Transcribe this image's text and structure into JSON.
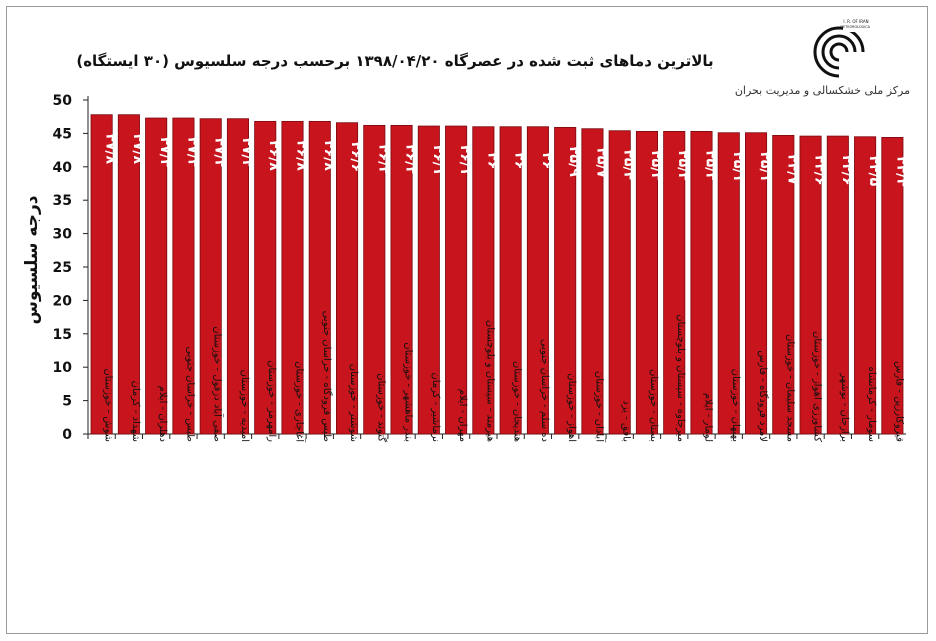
{
  "title": "بالاترین دماهای ثبت شده در عصرگاه ۱۳۹۸/۰۴/۲۰ برحسب درجه سلسیوس (۳۰ ایستگاه)",
  "logo": {
    "caption": "مرکز ملی خشکسالی و مدیریت بحران",
    "org_text": "I. R. OF IRAN METEOROLOGICAL ORGANIZATION"
  },
  "colors": {
    "bar": "#c8141c",
    "bar_edge": "#7a0a10",
    "axis": "#222222"
  },
  "chart_data": {
    "type": "bar",
    "ylabel": "درجه سلسیوس",
    "ylim": [
      0,
      50
    ],
    "yticks": [
      "0",
      "5",
      "10",
      "15",
      "20",
      "25",
      "30",
      "35",
      "40",
      "45",
      "50"
    ],
    "legend": "none",
    "categories": [
      "شوش - خوزستان",
      "شهداد - کرمان",
      "دهلران - ایلام",
      "طبس - خراسان جنوبی",
      "صفی آباد دزفول - خوزستان",
      "امیدیه - خوزستان",
      "رامهرمز - خوزستان",
      "آغاجاری - خوزستان",
      "طبس فرودگاه - خراسان جنوبی",
      "شوشتر - خوزستان",
      "گتوند - خوزستان",
      "بندر ماهشهر - خوزستان",
      "نرماشیر - کرمان",
      "مهران - ایلام",
      "هیرمند - سیستان و بلوچستان",
      "هندیجان - خوزستان",
      "ده سلم - خراسان جنوبی",
      "اهواز - خوزستان",
      "آبادان - خوزستان",
      "بافق - یزد",
      "بستان - خوزستان",
      "میرجاوه - سیستان و بلوچستان",
      "لومار - ایلام",
      "بهبهان - خوزستان",
      "لامرد فرودگاه - فارس",
      "مسجد سلیمان - خوزستان",
      "کشاورزی اهواز - خوزستان",
      "برازجان - بوشهر",
      "سومار - کرمانشاه",
      "قیروکارزین - فارس"
    ],
    "values": [
      47.8,
      47.8,
      47.3,
      47.3,
      47.2,
      47.2,
      46.8,
      46.8,
      46.8,
      46.6,
      46.2,
      46.2,
      46.1,
      46.1,
      46.0,
      46.0,
      46.0,
      45.9,
      45.7,
      45.4,
      45.3,
      45.3,
      45.3,
      45.1,
      45.1,
      44.7,
      44.6,
      44.6,
      44.5,
      44.4
    ],
    "data_labels": [
      "۴۷/۸",
      "۴۷/۸",
      "۴۷/۳",
      "۴۷/۳",
      "۴۷/۲",
      "۴۷/۲",
      "۴۶/۸",
      "۴۶/۸",
      "۴۶/۸",
      "۴۶/۶",
      "۴۶/۲",
      "۴۶/۲",
      "۴۶/۱",
      "۴۶/۱",
      "۴۶",
      "۴۶",
      "۴۶",
      "۴۵/۹",
      "۴۵/۷",
      "۴۵/۴",
      "۴۵/۳",
      "۴۵/۳",
      "۴۵/۳",
      "۴۵/۱",
      "۴۵/۱",
      "۴۴/۷",
      "۴۴/۶",
      "۴۴/۶",
      "۴۴/۵",
      "۴۴/۴"
    ]
  }
}
